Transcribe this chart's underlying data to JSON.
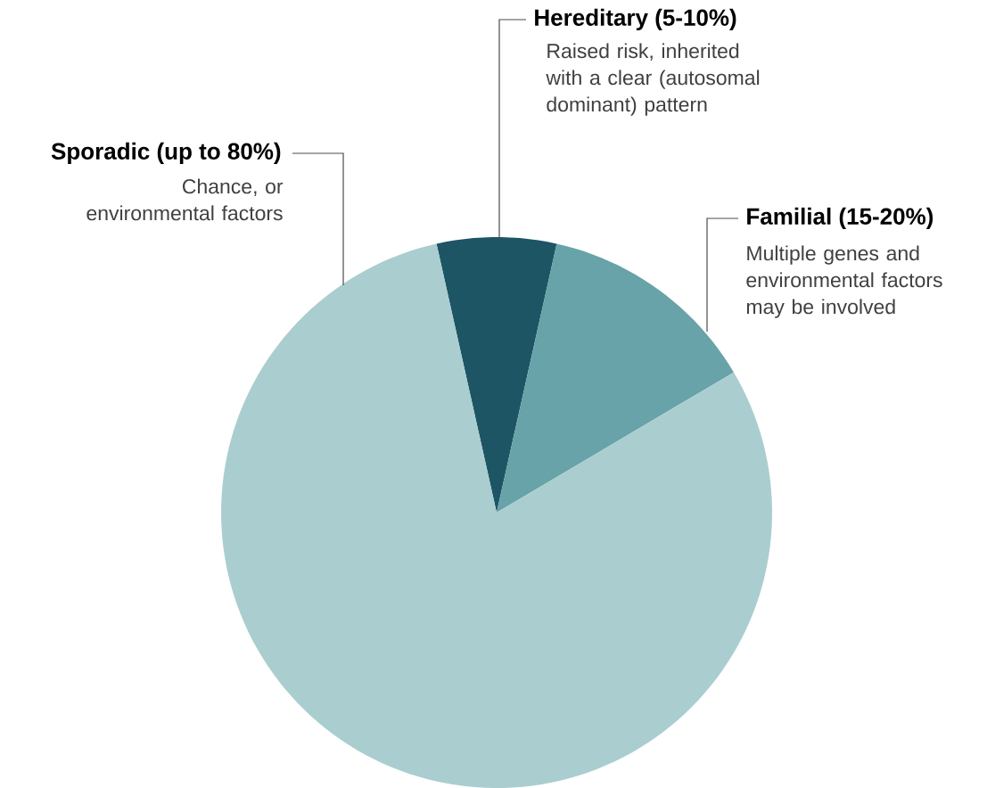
{
  "chart_data": {
    "type": "pie",
    "categories": [
      "Hereditary (5-10%)",
      "Familial (15-20%)",
      "Sporadic (up to 80%)"
    ],
    "values": [
      7,
      13,
      80
    ],
    "colors": [
      "#1d5565",
      "#67a3a8",
      "#aacdd0"
    ],
    "annotations": [
      "Raised risk, inherited with a clear (autosomal dominant) pattern",
      "Multiple genes and environmental factors may be involved",
      "Chance, or environmental factors"
    ],
    "legend": false
  }
}
